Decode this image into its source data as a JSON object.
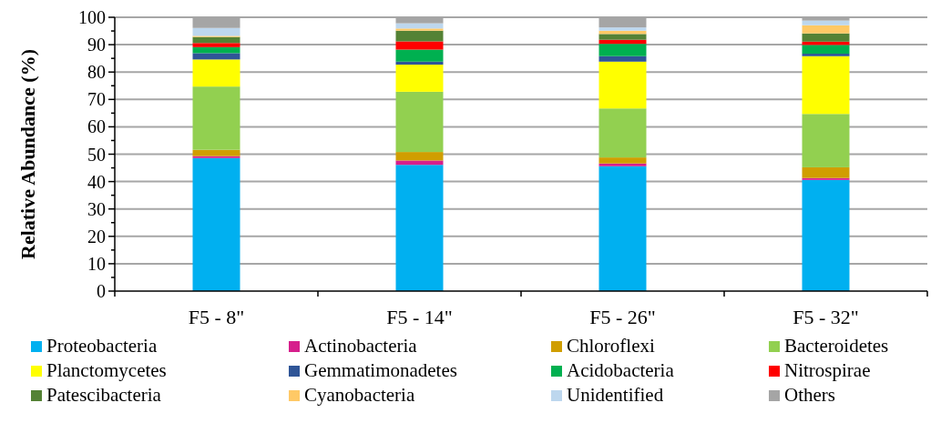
{
  "chart_data": {
    "type": "bar",
    "stacked": true,
    "ylabel": "Relative Abundance (%)",
    "categories": [
      "F5 - 8\"",
      "F5 - 14\"",
      "F5 - 26\"",
      "F5 - 32\""
    ],
    "ylim": [
      0,
      100
    ],
    "yticks": [
      0,
      {
        "value": 5,
        "label": null
      },
      10,
      {
        "value": 15,
        "label": null
      },
      20,
      {
        "value": 25,
        "label": null
      },
      30,
      {
        "value": 35,
        "label": null
      },
      40,
      {
        "value": 45,
        "label": null
      },
      50,
      {
        "value": 55,
        "label": null
      },
      60,
      {
        "value": 65,
        "label": null
      },
      70,
      {
        "value": 75,
        "label": null
      },
      80,
      {
        "value": 85,
        "label": null
      },
      90,
      {
        "value": 95,
        "label": null
      },
      100
    ],
    "grid": "y",
    "legend": "bottom",
    "series": [
      {
        "name": "Proteobacteria",
        "color": "#00b0f0",
        "values": [
          48.6,
          46.1,
          45.6,
          40.6
        ]
      },
      {
        "name": "Actinobacteria",
        "color": "#d61f8c",
        "values": [
          0.7,
          1.6,
          1.0,
          0.7
        ]
      },
      {
        "name": "Chloroflexi",
        "color": "#d09e00",
        "values": [
          2.3,
          3.1,
          2.2,
          3.9
        ]
      },
      {
        "name": "Bacteroidetes",
        "color": "#92d050",
        "values": [
          23.1,
          22.0,
          17.9,
          19.5
        ]
      },
      {
        "name": "Planctomycetes",
        "color": "#ffff00",
        "values": [
          9.9,
          9.9,
          17.1,
          21.1
        ]
      },
      {
        "name": "Gemmatimonadetes",
        "color": "#2f5597",
        "values": [
          2.3,
          1.1,
          2.0,
          0.9
        ]
      },
      {
        "name": "Acidobacteria",
        "color": "#00b050",
        "values": [
          2.2,
          4.4,
          4.5,
          3.2
        ]
      },
      {
        "name": "Nitrospirae",
        "color": "#ff0000",
        "values": [
          1.5,
          3.0,
          1.5,
          1.2
        ]
      },
      {
        "name": "Patescibacteria",
        "color": "#548235",
        "values": [
          2.2,
          3.9,
          2.1,
          3.0
        ]
      },
      {
        "name": "Cyanobacteria",
        "color": "#ffc966",
        "values": [
          0.4,
          0.8,
          1.2,
          3.0
        ]
      },
      {
        "name": "Unidentified",
        "color": "#bdd7ee",
        "values": [
          2.9,
          1.9,
          1.2,
          1.7
        ]
      },
      {
        "name": "Others",
        "color": "#a5a5a5",
        "values": [
          3.9,
          2.2,
          3.7,
          1.2
        ]
      }
    ]
  }
}
